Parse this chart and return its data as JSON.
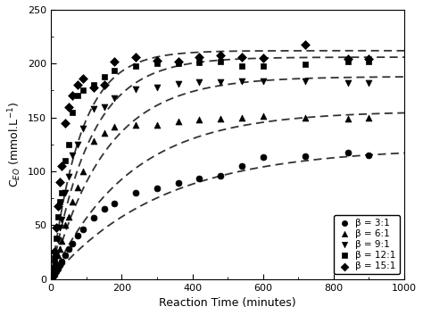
{
  "title": "",
  "xlabel": "Reaction Time (minutes)",
  "ylabel": "C$_{EO}$ (mmol.L$^{-1}$)",
  "xlim": [
    0,
    1000
  ],
  "ylim": [
    0,
    250
  ],
  "xticks": [
    0,
    200,
    400,
    600,
    800,
    1000
  ],
  "yticks": [
    0,
    50,
    100,
    150,
    200,
    250
  ],
  "series": [
    {
      "label": "β = 3:1",
      "marker": "o",
      "data_x": [
        5,
        10,
        15,
        20,
        25,
        30,
        40,
        50,
        60,
        75,
        90,
        120,
        150,
        180,
        240,
        300,
        360,
        420,
        480,
        540,
        600,
        720,
        840,
        900
      ],
      "data_y": [
        2,
        4,
        7,
        10,
        13,
        16,
        22,
        28,
        33,
        40,
        46,
        57,
        65,
        70,
        80,
        84,
        89,
        93,
        96,
        105,
        113,
        114,
        117,
        115
      ],
      "fit_params": [
        122,
        0.0032
      ]
    },
    {
      "label": "β = 6:1",
      "marker": "^",
      "data_x": [
        5,
        10,
        15,
        20,
        25,
        30,
        40,
        50,
        60,
        75,
        90,
        120,
        150,
        180,
        240,
        300,
        360,
        420,
        480,
        540,
        600,
        720,
        840,
        900
      ],
      "data_y": [
        4,
        8,
        15,
        22,
        28,
        35,
        50,
        58,
        72,
        85,
        100,
        128,
        136,
        141,
        143,
        143,
        146,
        148,
        149,
        150,
        151,
        150,
        149,
        150
      ],
      "fit_params": [
        156,
        0.0045
      ]
    },
    {
      "label": "β = 9:1",
      "marker": "v",
      "data_x": [
        5,
        10,
        15,
        20,
        25,
        30,
        40,
        50,
        60,
        75,
        90,
        120,
        150,
        180,
        240,
        300,
        360,
        420,
        480,
        540,
        600,
        720,
        840,
        900
      ],
      "data_y": [
        6,
        14,
        24,
        36,
        48,
        55,
        80,
        95,
        115,
        125,
        140,
        158,
        160,
        168,
        176,
        178,
        181,
        183,
        183,
        184,
        184,
        184,
        182,
        182
      ],
      "fit_params": [
        188,
        0.0065
      ]
    },
    {
      "label": "β = 12:1",
      "marker": "s",
      "data_x": [
        5,
        10,
        15,
        20,
        25,
        30,
        40,
        50,
        60,
        75,
        90,
        120,
        150,
        180,
        240,
        300,
        360,
        420,
        480,
        540,
        600,
        720,
        840,
        900
      ],
      "data_y": [
        8,
        20,
        38,
        58,
        72,
        80,
        110,
        125,
        155,
        170,
        175,
        180,
        188,
        194,
        198,
        200,
        200,
        201,
        202,
        198,
        198,
        199,
        202,
        202
      ],
      "fit_params": [
        206,
        0.009
      ]
    },
    {
      "label": "β = 15:1",
      "marker": "D",
      "data_x": [
        5,
        10,
        15,
        20,
        25,
        30,
        40,
        50,
        60,
        75,
        90,
        120,
        150,
        180,
        240,
        300,
        360,
        420,
        480,
        540,
        600,
        720,
        840,
        900
      ],
      "data_y": [
        10,
        25,
        48,
        68,
        90,
        105,
        145,
        160,
        170,
        180,
        186,
        178,
        180,
        202,
        206,
        203,
        202,
        206,
        208,
        206,
        205,
        218,
        204,
        204
      ],
      "fit_params": [
        212,
        0.012
      ]
    }
  ],
  "background_color": "#ffffff",
  "legend_loc": "lower right",
  "marker_size": 5,
  "line_color": "#333333",
  "line_width": 1.3,
  "font_size": 9
}
